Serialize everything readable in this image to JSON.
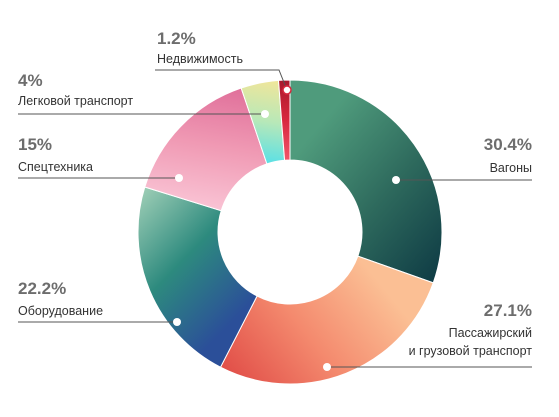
{
  "chart_data": {
    "type": "pie",
    "subtype": "donut",
    "slices": [
      {
        "label": "Вагоны",
        "label_lines": [
          "Вагоны"
        ],
        "value": 30.4,
        "value_text": "30.4%",
        "colors": [
          "#4f9b7c",
          "#2e6a5d",
          "#0f3c45"
        ]
      },
      {
        "label": "Пассажирский и грузовой транспорт",
        "label_lines": [
          "Пассажирский",
          "и грузовой транспорт"
        ],
        "value": 27.1,
        "value_text": "27.1%",
        "colors": [
          "#fbbf94",
          "#f48a6e",
          "#e14e48"
        ]
      },
      {
        "label": "Оборудование",
        "label_lines": [
          "Оборудование"
        ],
        "value": 22.2,
        "value_text": "22.2%",
        "colors": [
          "#2b4f99",
          "#2d8a7e",
          "#9ccdb5"
        ]
      },
      {
        "label": "Спецтехника",
        "label_lines": [
          "Спецтехника"
        ],
        "value": 15,
        "value_text": "15%",
        "colors": [
          "#f9c3d4",
          "#f09ab4",
          "#e06f9a"
        ]
      },
      {
        "label": "Легковой транспорт",
        "label_lines": [
          "Легковой транспорт"
        ],
        "value": 4,
        "value_text": "4%",
        "colors": [
          "#59e0e6",
          "#b8e8b8",
          "#f1e69a"
        ]
      },
      {
        "label": "Недвижимость",
        "label_lines": [
          "Недвижимость"
        ],
        "value": 1.2,
        "value_text": "1.2%",
        "colors": [
          "#f0566a",
          "#d8283e",
          "#a8182c"
        ]
      }
    ],
    "label_color": "#333333",
    "value_color": "#6d6d6d",
    "leader_color": "#555555"
  }
}
